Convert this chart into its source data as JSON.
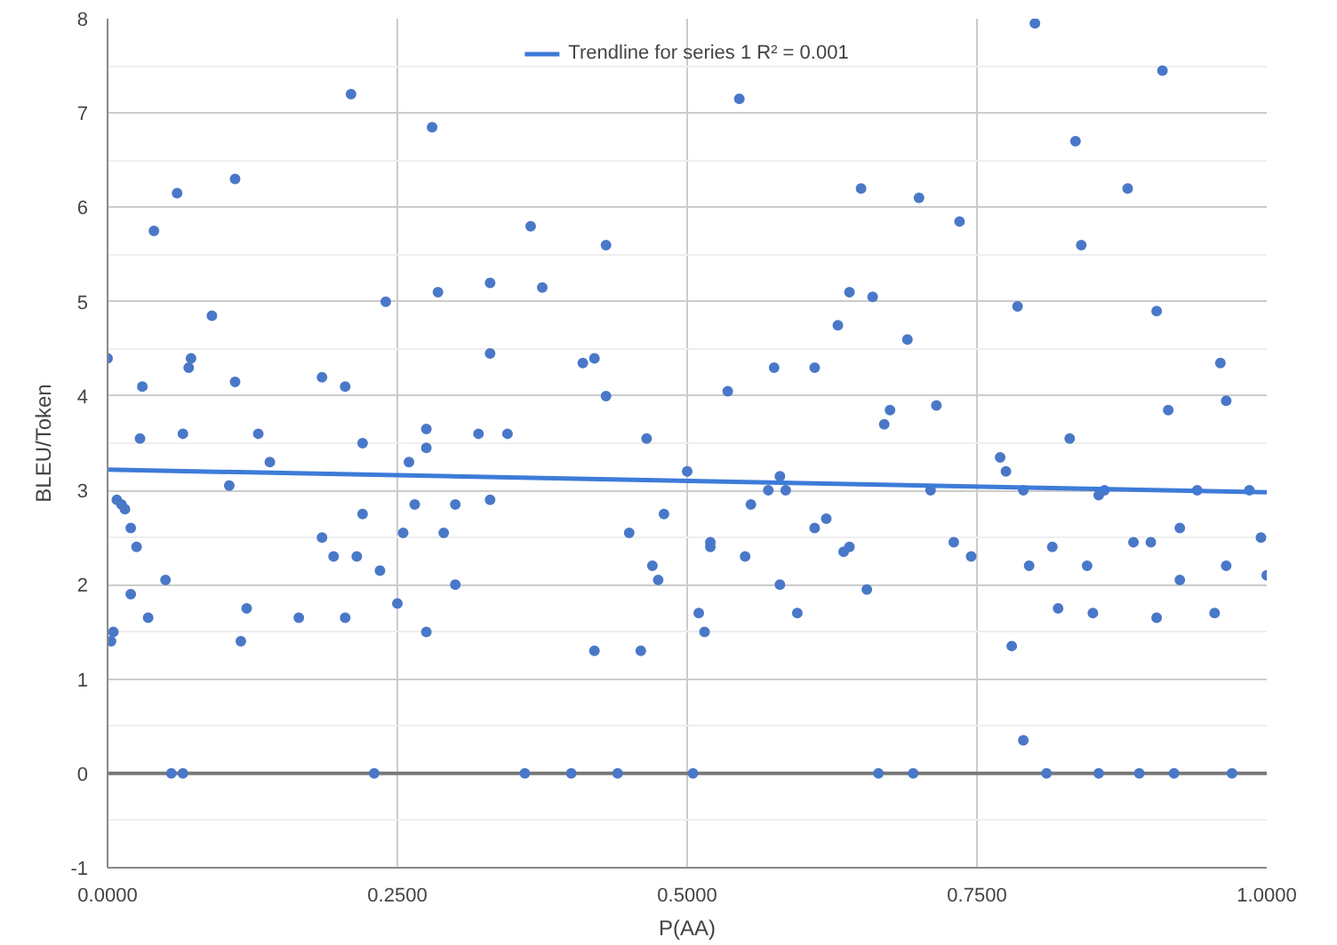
{
  "chart_data": {
    "type": "scatter",
    "xlabel": "P(AA)",
    "ylabel": "BLEU/Token",
    "xlim": [
      0,
      1
    ],
    "ylim": [
      -1,
      8
    ],
    "xticks": [
      {
        "value": 0,
        "label": "0.0000"
      },
      {
        "value": 0.25,
        "label": "0.2500"
      },
      {
        "value": 0.5,
        "label": "0.5000"
      },
      {
        "value": 0.75,
        "label": "0.7500"
      },
      {
        "value": 1,
        "label": "1.0000"
      }
    ],
    "yticks": [
      -1,
      0,
      1,
      2,
      3,
      4,
      5,
      6,
      7,
      8
    ],
    "grid": true,
    "legend": "top",
    "series": [
      {
        "type": "scatter",
        "marker": "circle",
        "color": "#4a78c8",
        "x": [
          0.0,
          0.003,
          0.005,
          0.008,
          0.012,
          0.015,
          0.02,
          0.025,
          0.02,
          0.028,
          0.035,
          0.03,
          0.04,
          0.05,
          0.055,
          0.06,
          0.065,
          0.065,
          0.07,
          0.072,
          0.09,
          0.105,
          0.11,
          0.11,
          0.115,
          0.12,
          0.13,
          0.14,
          0.165,
          0.185,
          0.185,
          0.195,
          0.205,
          0.205,
          0.21,
          0.215,
          0.22,
          0.22,
          0.23,
          0.235,
          0.24,
          0.25,
          0.255,
          0.26,
          0.265,
          0.275,
          0.275,
          0.275,
          0.28,
          0.285,
          0.29,
          0.3,
          0.3,
          0.32,
          0.33,
          0.33,
          0.33,
          0.345,
          0.36,
          0.365,
          0.375,
          0.4,
          0.41,
          0.42,
          0.42,
          0.43,
          0.43,
          0.44,
          0.45,
          0.46,
          0.465,
          0.47,
          0.475,
          0.48,
          0.5,
          0.505,
          0.51,
          0.515,
          0.52,
          0.52,
          0.535,
          0.545,
          0.55,
          0.555,
          0.57,
          0.575,
          0.58,
          0.58,
          0.585,
          0.595,
          0.61,
          0.61,
          0.62,
          0.63,
          0.635,
          0.64,
          0.64,
          0.65,
          0.655,
          0.66,
          0.665,
          0.67,
          0.675,
          0.69,
          0.695,
          0.7,
          0.71,
          0.715,
          0.73,
          0.735,
          0.745,
          0.77,
          0.775,
          0.78,
          0.785,
          0.79,
          0.79,
          0.795,
          0.8,
          0.81,
          0.815,
          0.82,
          0.83,
          0.835,
          0.84,
          0.845,
          0.85,
          0.855,
          0.855,
          0.86,
          0.88,
          0.885,
          0.89,
          0.9,
          0.905,
          0.905,
          0.91,
          0.915,
          0.92,
          0.925,
          0.925,
          0.94,
          0.955,
          0.96,
          0.965,
          0.965,
          0.97,
          0.985,
          0.995,
          1.0
        ],
        "values": [
          4.4,
          1.4,
          1.5,
          2.9,
          2.85,
          2.8,
          2.6,
          2.4,
          1.9,
          3.55,
          1.65,
          4.1,
          5.75,
          2.05,
          0,
          6.15,
          0,
          3.6,
          4.3,
          4.4,
          4.85,
          3.05,
          6.3,
          4.15,
          1.4,
          1.75,
          3.6,
          3.3,
          1.65,
          2.5,
          4.2,
          2.3,
          4.1,
          1.65,
          7.2,
          2.3,
          3.5,
          2.75,
          0,
          2.15,
          5.0,
          1.8,
          2.55,
          3.3,
          2.85,
          1.5,
          3.65,
          3.45,
          6.85,
          5.1,
          2.55,
          2.85,
          2.0,
          3.6,
          5.2,
          4.45,
          2.9,
          3.6,
          0,
          5.8,
          5.15,
          0,
          4.35,
          1.3,
          4.4,
          5.6,
          4.0,
          0,
          2.55,
          1.3,
          3.55,
          2.2,
          2.05,
          2.75,
          3.2,
          0,
          1.7,
          1.5,
          2.45,
          2.4,
          4.05,
          7.15,
          2.3,
          2.85,
          3.0,
          4.3,
          3.15,
          2.0,
          3.0,
          1.7,
          4.3,
          2.6,
          2.7,
          4.75,
          2.35,
          5.1,
          2.4,
          6.2,
          1.95,
          5.05,
          0,
          3.7,
          3.85,
          4.6,
          0,
          6.1,
          3.0,
          3.9,
          2.45,
          5.85,
          2.3,
          3.35,
          3.2,
          1.35,
          4.95,
          0.35,
          3.0,
          2.2,
          7.95,
          0,
          2.4,
          1.75,
          3.55,
          6.7,
          5.6,
          2.2,
          1.7,
          0,
          2.95,
          3.0,
          6.2,
          2.45,
          0,
          2.45,
          1.65,
          4.9,
          7.45,
          3.85,
          0,
          2.05,
          2.6,
          3.0,
          1.7,
          4.35,
          3.95,
          2.2,
          0,
          3.0,
          2.5,
          2.1
        ]
      },
      {
        "type": "line",
        "name": "Trendline for series 1 R² = 0.001",
        "color": "#3d7bd9",
        "x": [
          0,
          1
        ],
        "values": [
          3.22,
          2.98
        ]
      }
    ]
  }
}
